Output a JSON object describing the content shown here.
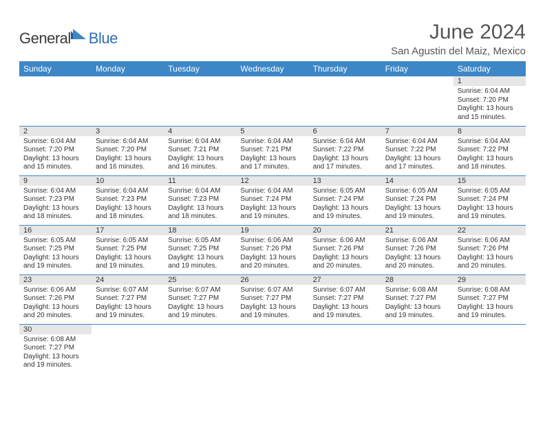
{
  "logo": {
    "general": "General",
    "blue": "Blue"
  },
  "title": "June 2024",
  "location": "San Agustin del Maiz, Mexico",
  "colors": {
    "header_bg": "#3d87c7",
    "header_fg": "#ffffff",
    "daynum_bg": "#e6e6e6",
    "border": "#3d87c7",
    "title_color": "#555555",
    "text": "#333333",
    "logo_blue": "#2d6fb3",
    "logo_gray": "#3a3a3a"
  },
  "day_headers": [
    "Sunday",
    "Monday",
    "Tuesday",
    "Wednesday",
    "Thursday",
    "Friday",
    "Saturday"
  ],
  "weeks": [
    [
      null,
      null,
      null,
      null,
      null,
      null,
      {
        "n": "1",
        "sr": "Sunrise: 6:04 AM",
        "ss": "Sunset: 7:20 PM",
        "dl": "Daylight: 13 hours and 15 minutes."
      }
    ],
    [
      {
        "n": "2",
        "sr": "Sunrise: 6:04 AM",
        "ss": "Sunset: 7:20 PM",
        "dl": "Daylight: 13 hours and 15 minutes."
      },
      {
        "n": "3",
        "sr": "Sunrise: 6:04 AM",
        "ss": "Sunset: 7:20 PM",
        "dl": "Daylight: 13 hours and 16 minutes."
      },
      {
        "n": "4",
        "sr": "Sunrise: 6:04 AM",
        "ss": "Sunset: 7:21 PM",
        "dl": "Daylight: 13 hours and 16 minutes."
      },
      {
        "n": "5",
        "sr": "Sunrise: 6:04 AM",
        "ss": "Sunset: 7:21 PM",
        "dl": "Daylight: 13 hours and 17 minutes."
      },
      {
        "n": "6",
        "sr": "Sunrise: 6:04 AM",
        "ss": "Sunset: 7:22 PM",
        "dl": "Daylight: 13 hours and 17 minutes."
      },
      {
        "n": "7",
        "sr": "Sunrise: 6:04 AM",
        "ss": "Sunset: 7:22 PM",
        "dl": "Daylight: 13 hours and 17 minutes."
      },
      {
        "n": "8",
        "sr": "Sunrise: 6:04 AM",
        "ss": "Sunset: 7:22 PM",
        "dl": "Daylight: 13 hours and 18 minutes."
      }
    ],
    [
      {
        "n": "9",
        "sr": "Sunrise: 6:04 AM",
        "ss": "Sunset: 7:23 PM",
        "dl": "Daylight: 13 hours and 18 minutes."
      },
      {
        "n": "10",
        "sr": "Sunrise: 6:04 AM",
        "ss": "Sunset: 7:23 PM",
        "dl": "Daylight: 13 hours and 18 minutes."
      },
      {
        "n": "11",
        "sr": "Sunrise: 6:04 AM",
        "ss": "Sunset: 7:23 PM",
        "dl": "Daylight: 13 hours and 18 minutes."
      },
      {
        "n": "12",
        "sr": "Sunrise: 6:04 AM",
        "ss": "Sunset: 7:24 PM",
        "dl": "Daylight: 13 hours and 19 minutes."
      },
      {
        "n": "13",
        "sr": "Sunrise: 6:05 AM",
        "ss": "Sunset: 7:24 PM",
        "dl": "Daylight: 13 hours and 19 minutes."
      },
      {
        "n": "14",
        "sr": "Sunrise: 6:05 AM",
        "ss": "Sunset: 7:24 PM",
        "dl": "Daylight: 13 hours and 19 minutes."
      },
      {
        "n": "15",
        "sr": "Sunrise: 6:05 AM",
        "ss": "Sunset: 7:24 PM",
        "dl": "Daylight: 13 hours and 19 minutes."
      }
    ],
    [
      {
        "n": "16",
        "sr": "Sunrise: 6:05 AM",
        "ss": "Sunset: 7:25 PM",
        "dl": "Daylight: 13 hours and 19 minutes."
      },
      {
        "n": "17",
        "sr": "Sunrise: 6:05 AM",
        "ss": "Sunset: 7:25 PM",
        "dl": "Daylight: 13 hours and 19 minutes."
      },
      {
        "n": "18",
        "sr": "Sunrise: 6:05 AM",
        "ss": "Sunset: 7:25 PM",
        "dl": "Daylight: 13 hours and 19 minutes."
      },
      {
        "n": "19",
        "sr": "Sunrise: 6:06 AM",
        "ss": "Sunset: 7:26 PM",
        "dl": "Daylight: 13 hours and 20 minutes."
      },
      {
        "n": "20",
        "sr": "Sunrise: 6:06 AM",
        "ss": "Sunset: 7:26 PM",
        "dl": "Daylight: 13 hours and 20 minutes."
      },
      {
        "n": "21",
        "sr": "Sunrise: 6:06 AM",
        "ss": "Sunset: 7:26 PM",
        "dl": "Daylight: 13 hours and 20 minutes."
      },
      {
        "n": "22",
        "sr": "Sunrise: 6:06 AM",
        "ss": "Sunset: 7:26 PM",
        "dl": "Daylight: 13 hours and 20 minutes."
      }
    ],
    [
      {
        "n": "23",
        "sr": "Sunrise: 6:06 AM",
        "ss": "Sunset: 7:26 PM",
        "dl": "Daylight: 13 hours and 20 minutes."
      },
      {
        "n": "24",
        "sr": "Sunrise: 6:07 AM",
        "ss": "Sunset: 7:27 PM",
        "dl": "Daylight: 13 hours and 19 minutes."
      },
      {
        "n": "25",
        "sr": "Sunrise: 6:07 AM",
        "ss": "Sunset: 7:27 PM",
        "dl": "Daylight: 13 hours and 19 minutes."
      },
      {
        "n": "26",
        "sr": "Sunrise: 6:07 AM",
        "ss": "Sunset: 7:27 PM",
        "dl": "Daylight: 13 hours and 19 minutes."
      },
      {
        "n": "27",
        "sr": "Sunrise: 6:07 AM",
        "ss": "Sunset: 7:27 PM",
        "dl": "Daylight: 13 hours and 19 minutes."
      },
      {
        "n": "28",
        "sr": "Sunrise: 6:08 AM",
        "ss": "Sunset: 7:27 PM",
        "dl": "Daylight: 13 hours and 19 minutes."
      },
      {
        "n": "29",
        "sr": "Sunrise: 6:08 AM",
        "ss": "Sunset: 7:27 PM",
        "dl": "Daylight: 13 hours and 19 minutes."
      }
    ],
    [
      {
        "n": "30",
        "sr": "Sunrise: 6:08 AM",
        "ss": "Sunset: 7:27 PM",
        "dl": "Daylight: 13 hours and 19 minutes."
      },
      null,
      null,
      null,
      null,
      null,
      null
    ]
  ]
}
